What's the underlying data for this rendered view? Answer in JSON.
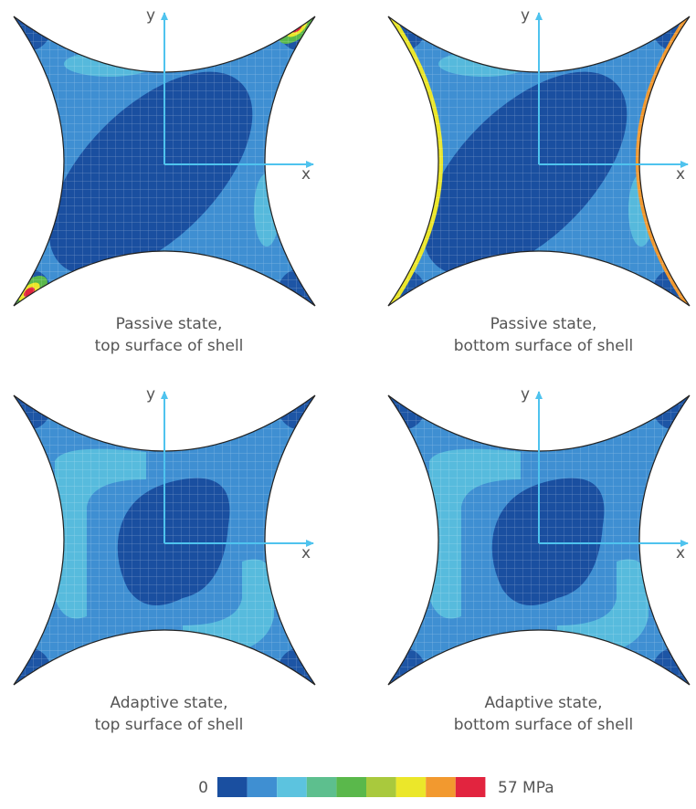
{
  "panels": [
    {
      "caption": [
        "Passive state,",
        "top surface of shell"
      ],
      "x_label": "x",
      "y_label": "y"
    },
    {
      "caption": [
        "Passive state,",
        "bottom surface of shell"
      ],
      "x_label": "x",
      "y_label": "y"
    },
    {
      "caption": [
        "Adaptive state,",
        "top surface of shell"
      ],
      "x_label": "x",
      "y_label": "y"
    },
    {
      "caption": [
        "Adaptive state,",
        "bottom surface of shell"
      ],
      "x_label": "x",
      "y_label": "y"
    }
  ],
  "colorbar": {
    "min_label": "0",
    "max_label": "57 MPa",
    "colors": [
      "#1a4fa0",
      "#3f8fd2",
      "#5cc3df",
      "#5dbf8e",
      "#5ab84b",
      "#a9c93d",
      "#ebe72a",
      "#f2992f",
      "#e2243f"
    ]
  }
}
